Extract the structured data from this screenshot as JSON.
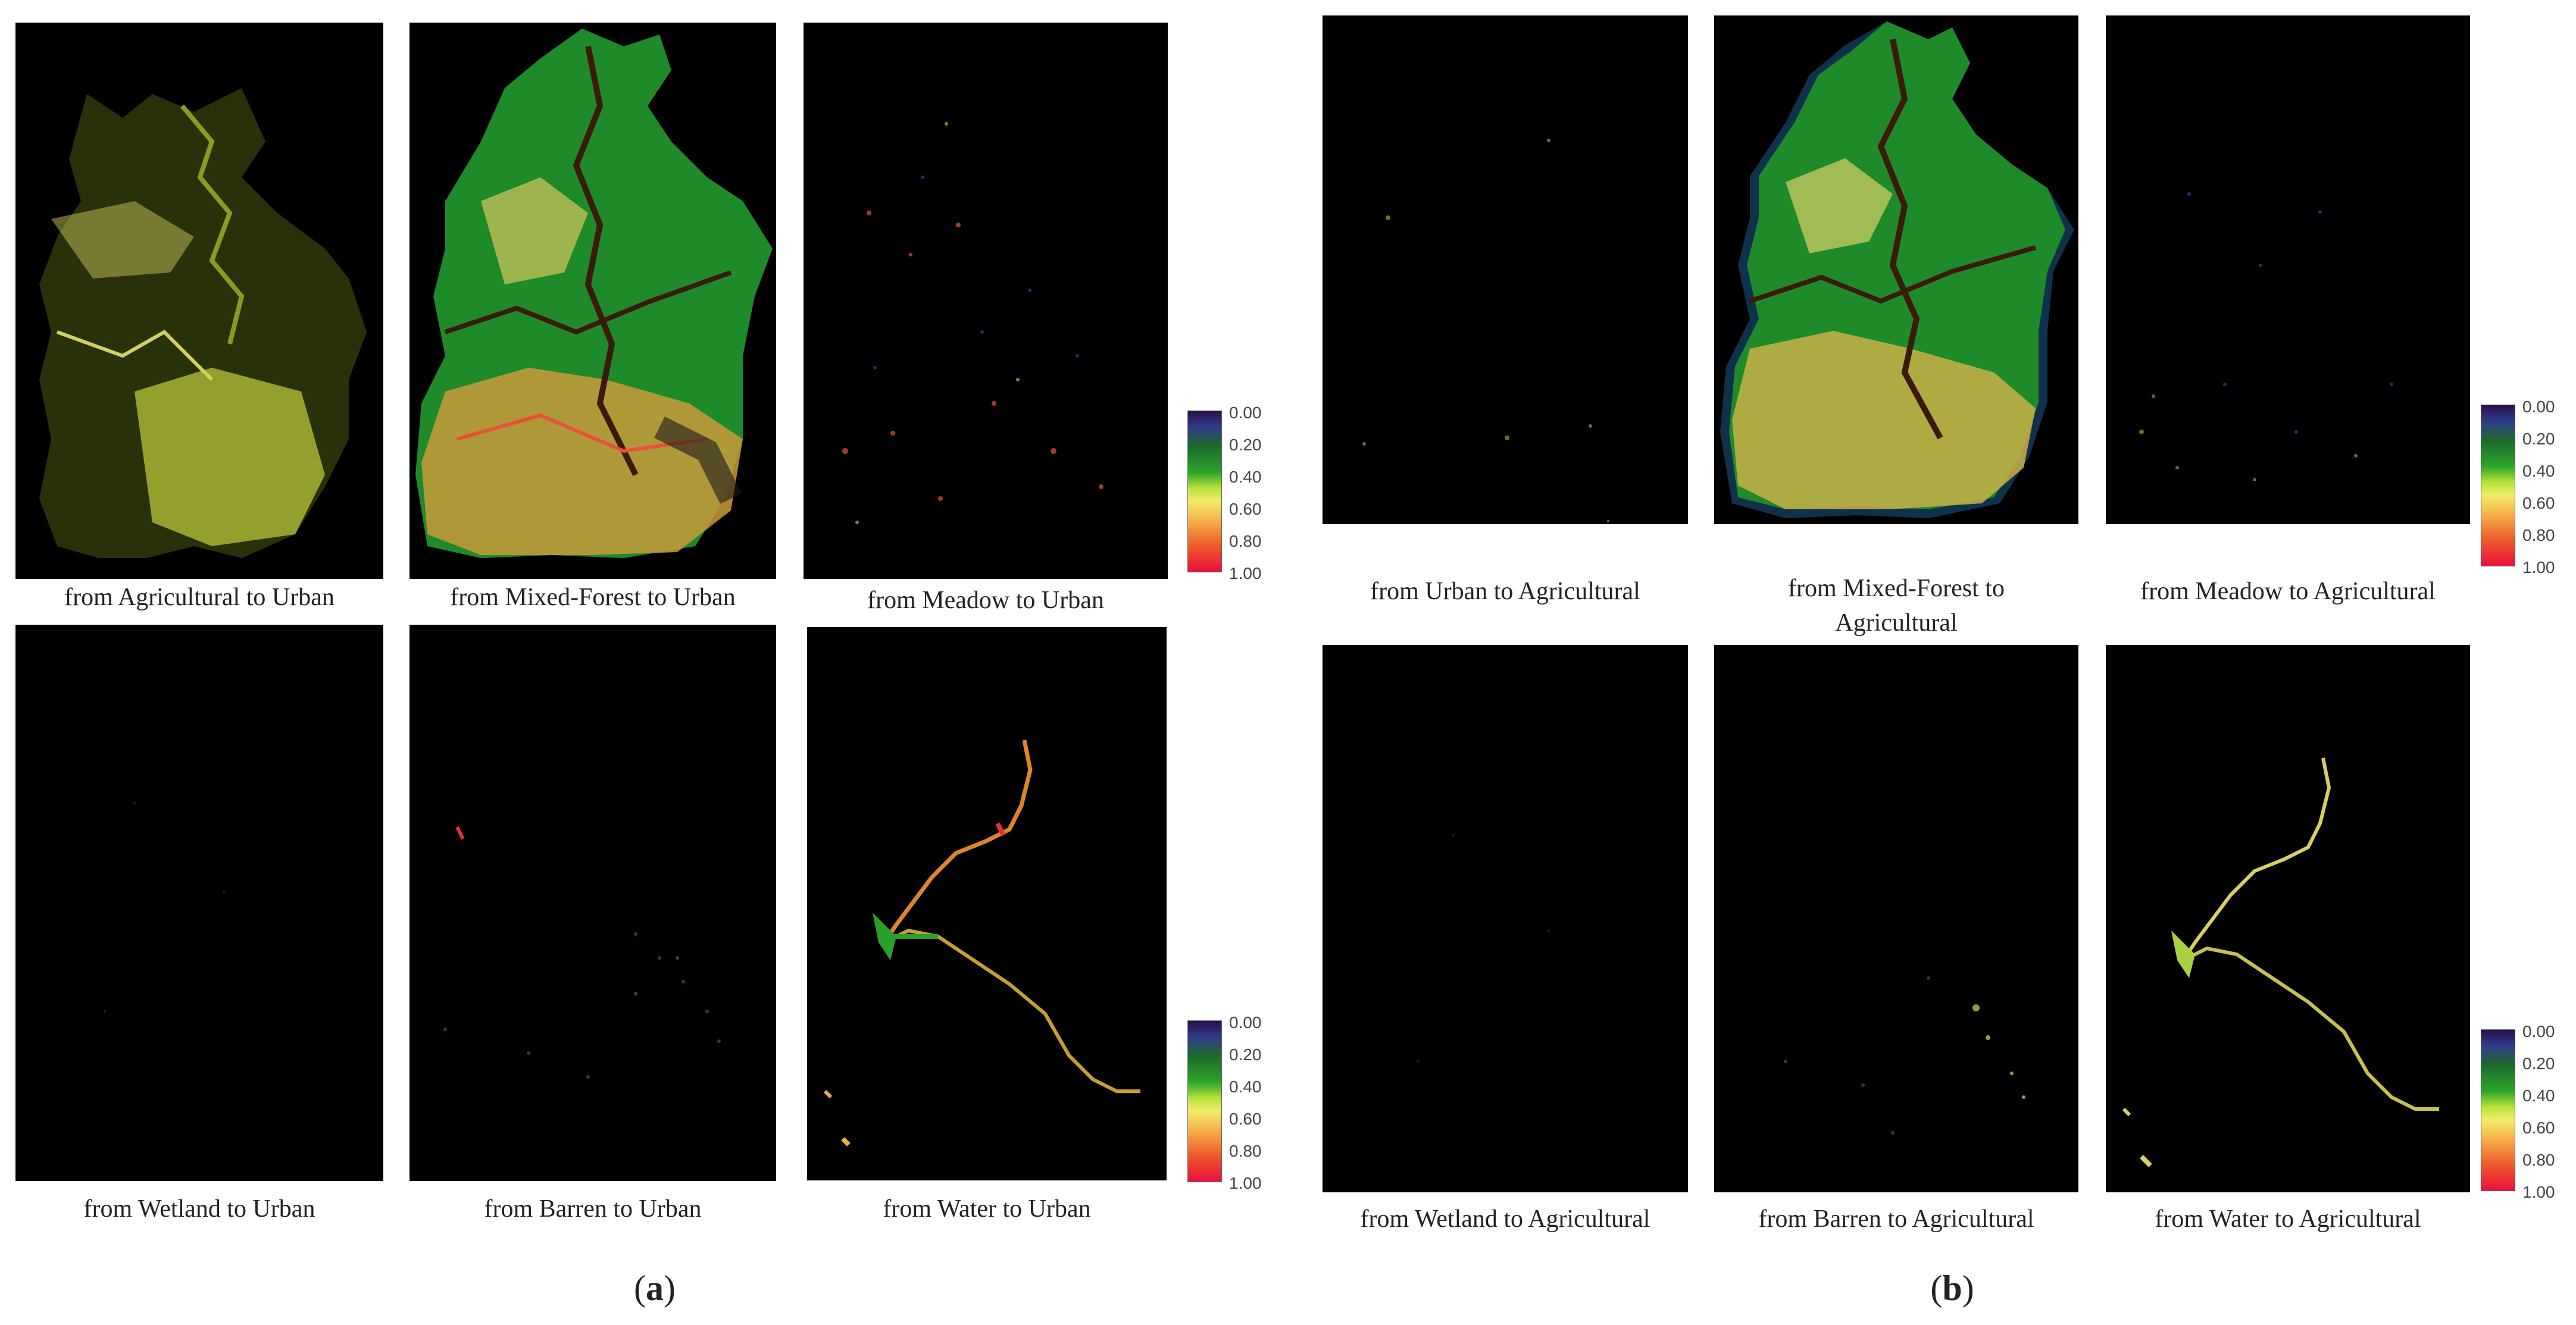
{
  "figure": {
    "group_a": {
      "label_letter": "a",
      "captions": [
        "from Agricultural to Urban",
        "from Mixed-Forest to Urban",
        "from Meadow to Urban",
        "from Wetland to Urban",
        "from Barren to Urban",
        "from Water to Urban"
      ]
    },
    "group_b": {
      "label_letter": "b",
      "captions": [
        "from Urban to Agricultural",
        "from Mixed-Forest to Agricultural",
        "from Meadow to Agricultural",
        "from Wetland to Agricultural",
        "from Barren to Agricultural",
        "from Water to Agricultural"
      ]
    },
    "legend_ticks": [
      "0.00",
      "0.20",
      "0.40",
      "0.60",
      "0.80",
      "1.00"
    ],
    "colormap": [
      "#2a0f4a",
      "#2f3c8c",
      "#1e6a2a",
      "#2ba52a",
      "#b6e23a",
      "#f2ec6a",
      "#f5b14c",
      "#ee5a2a",
      "#e8103e"
    ]
  }
}
